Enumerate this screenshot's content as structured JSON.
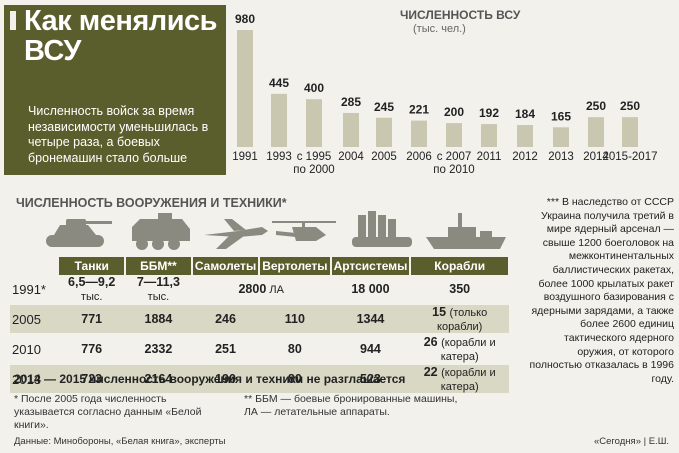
{
  "header": {
    "title": "Как менялись ВСУ",
    "subtitle": "Численность войск за время независимости уменьшилась в четыре раза, а боевых бронемашин стало больше"
  },
  "chart_data": {
    "type": "bar",
    "title": "ЧИСЛЕННОСТЬ ВСУ",
    "subtitle": "(тыс. чел.)",
    "categories": [
      "1991",
      "1993",
      "с 1995 по 2000",
      "2004",
      "2005",
      "2006",
      "с 2007 по 2010",
      "2011",
      "2012",
      "2013",
      "2014",
      "2015-2017"
    ],
    "category_lines": [
      [
        "1991"
      ],
      [
        "1993"
      ],
      [
        "с 1995",
        "по 2000"
      ],
      [
        "2004"
      ],
      [
        "2005"
      ],
      [
        "2006"
      ],
      [
        "с 2007",
        "по 2010"
      ],
      [
        "2011"
      ],
      [
        "2012"
      ],
      [
        "2013"
      ],
      [
        "2014"
      ],
      [
        "2015-2017"
      ]
    ],
    "values": [
      980,
      445,
      400,
      285,
      245,
      221,
      200,
      192,
      184,
      165,
      250,
      250
    ],
    "ylim": [
      0,
      980
    ],
    "bar_color": "#c9c7b0",
    "xlabel": "",
    "ylabel": ""
  },
  "section": {
    "title": "ЧИСЛЕННОСТЬ ВООРУЖЕНИЯ И ТЕХНИКИ*",
    "icons": [
      "tank-icon",
      "apc-icon",
      "fighter-jet-icon",
      "helicopter-icon",
      "artillery-icon",
      "warship-icon"
    ]
  },
  "table": {
    "headers": [
      "Танки",
      "ББМ**",
      "Самолеты",
      "Вертолеты",
      "Артсистемы",
      "Корабли"
    ],
    "rows": [
      {
        "year": "1991*",
        "tanks": "6,5—9,2",
        "tanks_unit": " тыс.",
        "bbm": "7—11,3",
        "bbm_unit": " тыс.",
        "air": "2800",
        "air_unit": " ЛА",
        "art": "18 000",
        "ships": "350",
        "ships_note": ""
      },
      {
        "year": "2005",
        "tanks": "771",
        "bbm": "1884",
        "planes": "246",
        "heli": "110",
        "art": "1344",
        "ships": "15",
        "ships_note": "(только корабли)"
      },
      {
        "year": "2010",
        "tanks": "776",
        "bbm": "2332",
        "planes": "251",
        "heli": "80",
        "art": "944",
        "ships": "26",
        "ships_note": "(корабли и катера)"
      },
      {
        "year": "2013",
        "tanks": "723",
        "bbm": "2164",
        "planes": "190",
        "heli": "80",
        "art": "523",
        "ships": "22",
        "ships_note": "(корабли и катера)"
      }
    ]
  },
  "no_info": "2014 — 2015 численность вооружения и техники не разглашается",
  "footnote1": "* После 2005 года численность указывается согласно данным «Белой книги».",
  "footnote2": "** ББМ — боевые бронированные машины, ЛА — летательные аппараты.",
  "side_note": "*** В наследство от СССР Украина получила третий в мире ядерный арсенал — свыше 1200 боеголовок на межконтинентальных баллистических ракетах, более 1000 крылатых ракет воздушного базирования с ядерными зарядами, а также более 2600 единиц тактического ядерного оружия, от которого полностью отказалась в 1996 году.",
  "source": "Данные: Минобороны, «Белая книга», эксперты",
  "credit": "«Сегодня» | Е.Ш."
}
